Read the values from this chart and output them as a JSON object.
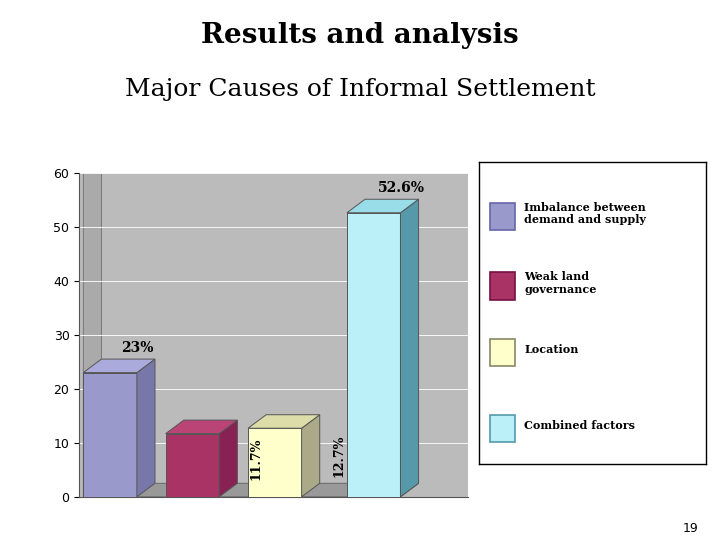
{
  "title1": "Results and analysis",
  "title2": "Major Causes of Informal Settlement",
  "values": [
    23.0,
    11.7,
    12.7,
    52.6
  ],
  "labels": [
    "23%",
    "11.7%",
    "12.7%",
    "52.6%"
  ],
  "label_rotation": [
    0,
    90,
    90,
    0
  ],
  "bar_colors": [
    "#9999cc",
    "#aa3366",
    "#ffffcc",
    "#bbf0f8"
  ],
  "bar_top_colors": [
    "#aaaadd",
    "#bb4477",
    "#ddddaa",
    "#99dde8"
  ],
  "bar_side_colors": [
    "#7777aa",
    "#882255",
    "#aaaa88",
    "#5599aa"
  ],
  "ylim": [
    0,
    60
  ],
  "yticks": [
    0,
    10,
    20,
    30,
    40,
    50,
    60
  ],
  "background_color": "#ffffff",
  "plot_bg_color": "#bbbbbb",
  "wall_color": "#aaaaaa",
  "grid_color": "#cccccc",
  "legend_labels": [
    "Imbalance between\ndemand and supply",
    "Weak land\ngovernance",
    "Location",
    "Combined factors"
  ],
  "legend_colors": [
    "#9999cc",
    "#aa3366",
    "#ffffcc",
    "#bbf0f8"
  ],
  "legend_edge_colors": [
    "#6666aa",
    "#771144",
    "#888866",
    "#5599aa"
  ],
  "title1_fontsize": 20,
  "title2_fontsize": 18,
  "page_number": "19"
}
